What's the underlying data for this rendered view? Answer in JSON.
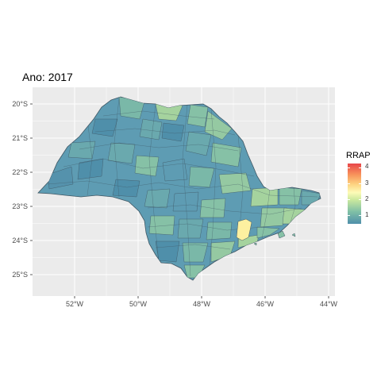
{
  "title": "Ano: 2017",
  "x_ticks": [
    "52°W",
    "50°W",
    "48°W",
    "46°W",
    "44°W"
  ],
  "y_ticks": [
    "20°S",
    "21°S",
    "22°S",
    "23°S",
    "24°S",
    "25°S"
  ],
  "legend": {
    "title": "RRAP",
    "ticks": [
      "4",
      "3",
      "2",
      "1"
    ],
    "colors": [
      "#4f8faa",
      "#7fbfa6",
      "#cce99e",
      "#fdfbb7",
      "#fdd17f",
      "#f7915a",
      "#e8464a"
    ]
  },
  "colors": {
    "panel_background": "#ebebeb",
    "grid": "#ffffff",
    "main_fill": "#5e9cb3",
    "region_fill_low": "#6aa9ae",
    "region_fill_mid": "#86c1a6",
    "region_fill_high": "#a5d39e",
    "highlight_fill": "#fdf0a0",
    "border": "#3f5663"
  }
}
